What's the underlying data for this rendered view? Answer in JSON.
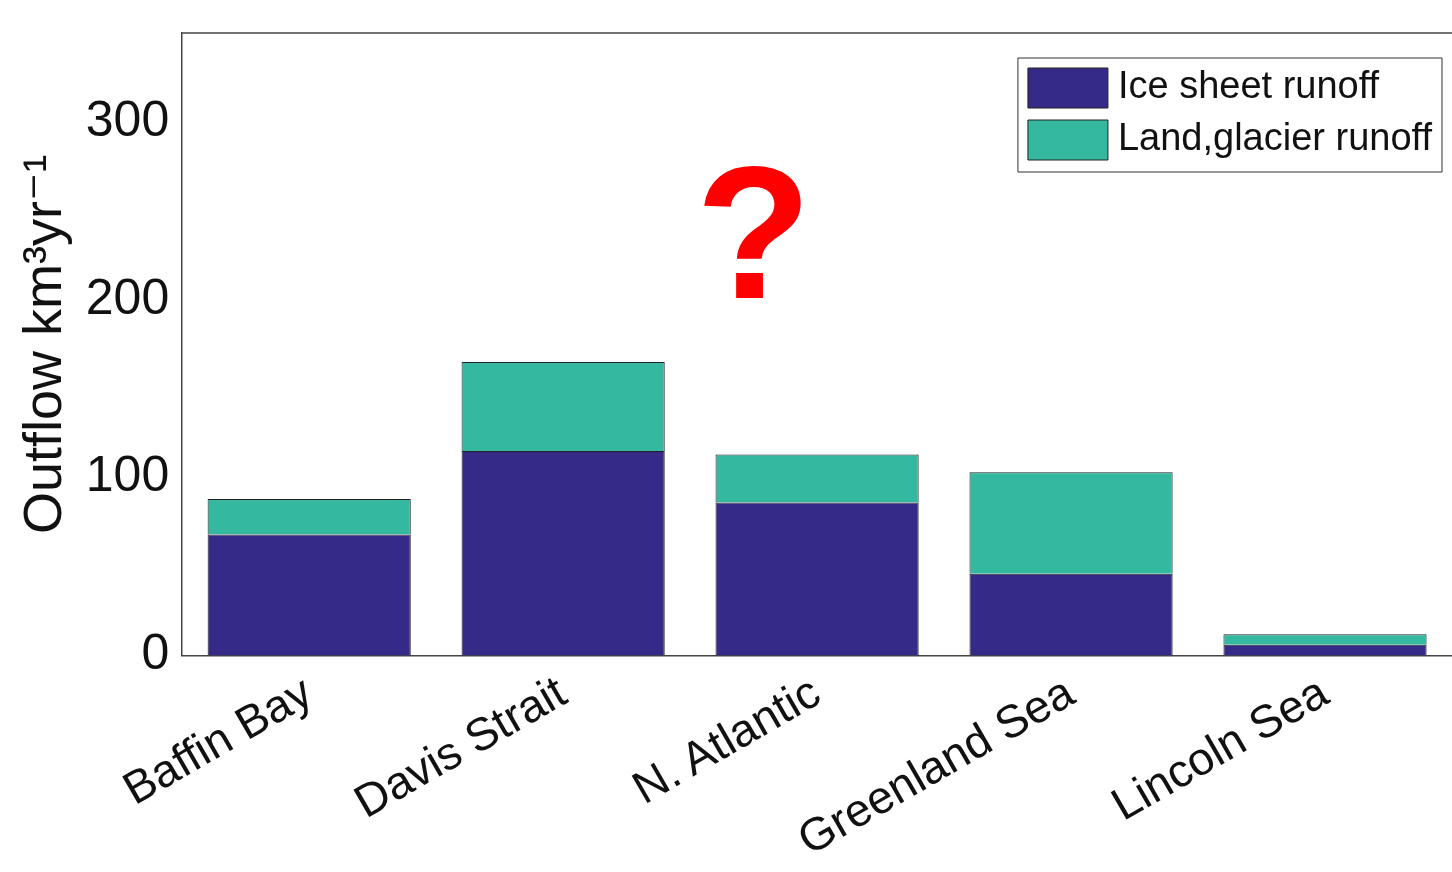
{
  "chart_data": {
    "type": "bar",
    "stacked": true,
    "categories": [
      "Baffin Bay",
      "Davis Strait",
      "N. Atlantic",
      "Greenland Sea",
      "Lincoln Sea"
    ],
    "series": [
      {
        "name": "Ice sheet runoff",
        "color": "#352a87",
        "values": [
          68,
          115,
          86,
          46,
          6
        ]
      },
      {
        "name": "Land,glacier runoff",
        "color": "#35b8a0",
        "values": [
          20,
          50,
          27,
          57,
          6
        ]
      }
    ],
    "ylabel": "Outflow km³yr⁻¹",
    "ylim": [
      0,
      350
    ],
    "yticks": [
      0,
      100,
      200,
      300
    ],
    "grid": false,
    "legend": "top right",
    "annotations": [
      "?"
    ]
  }
}
